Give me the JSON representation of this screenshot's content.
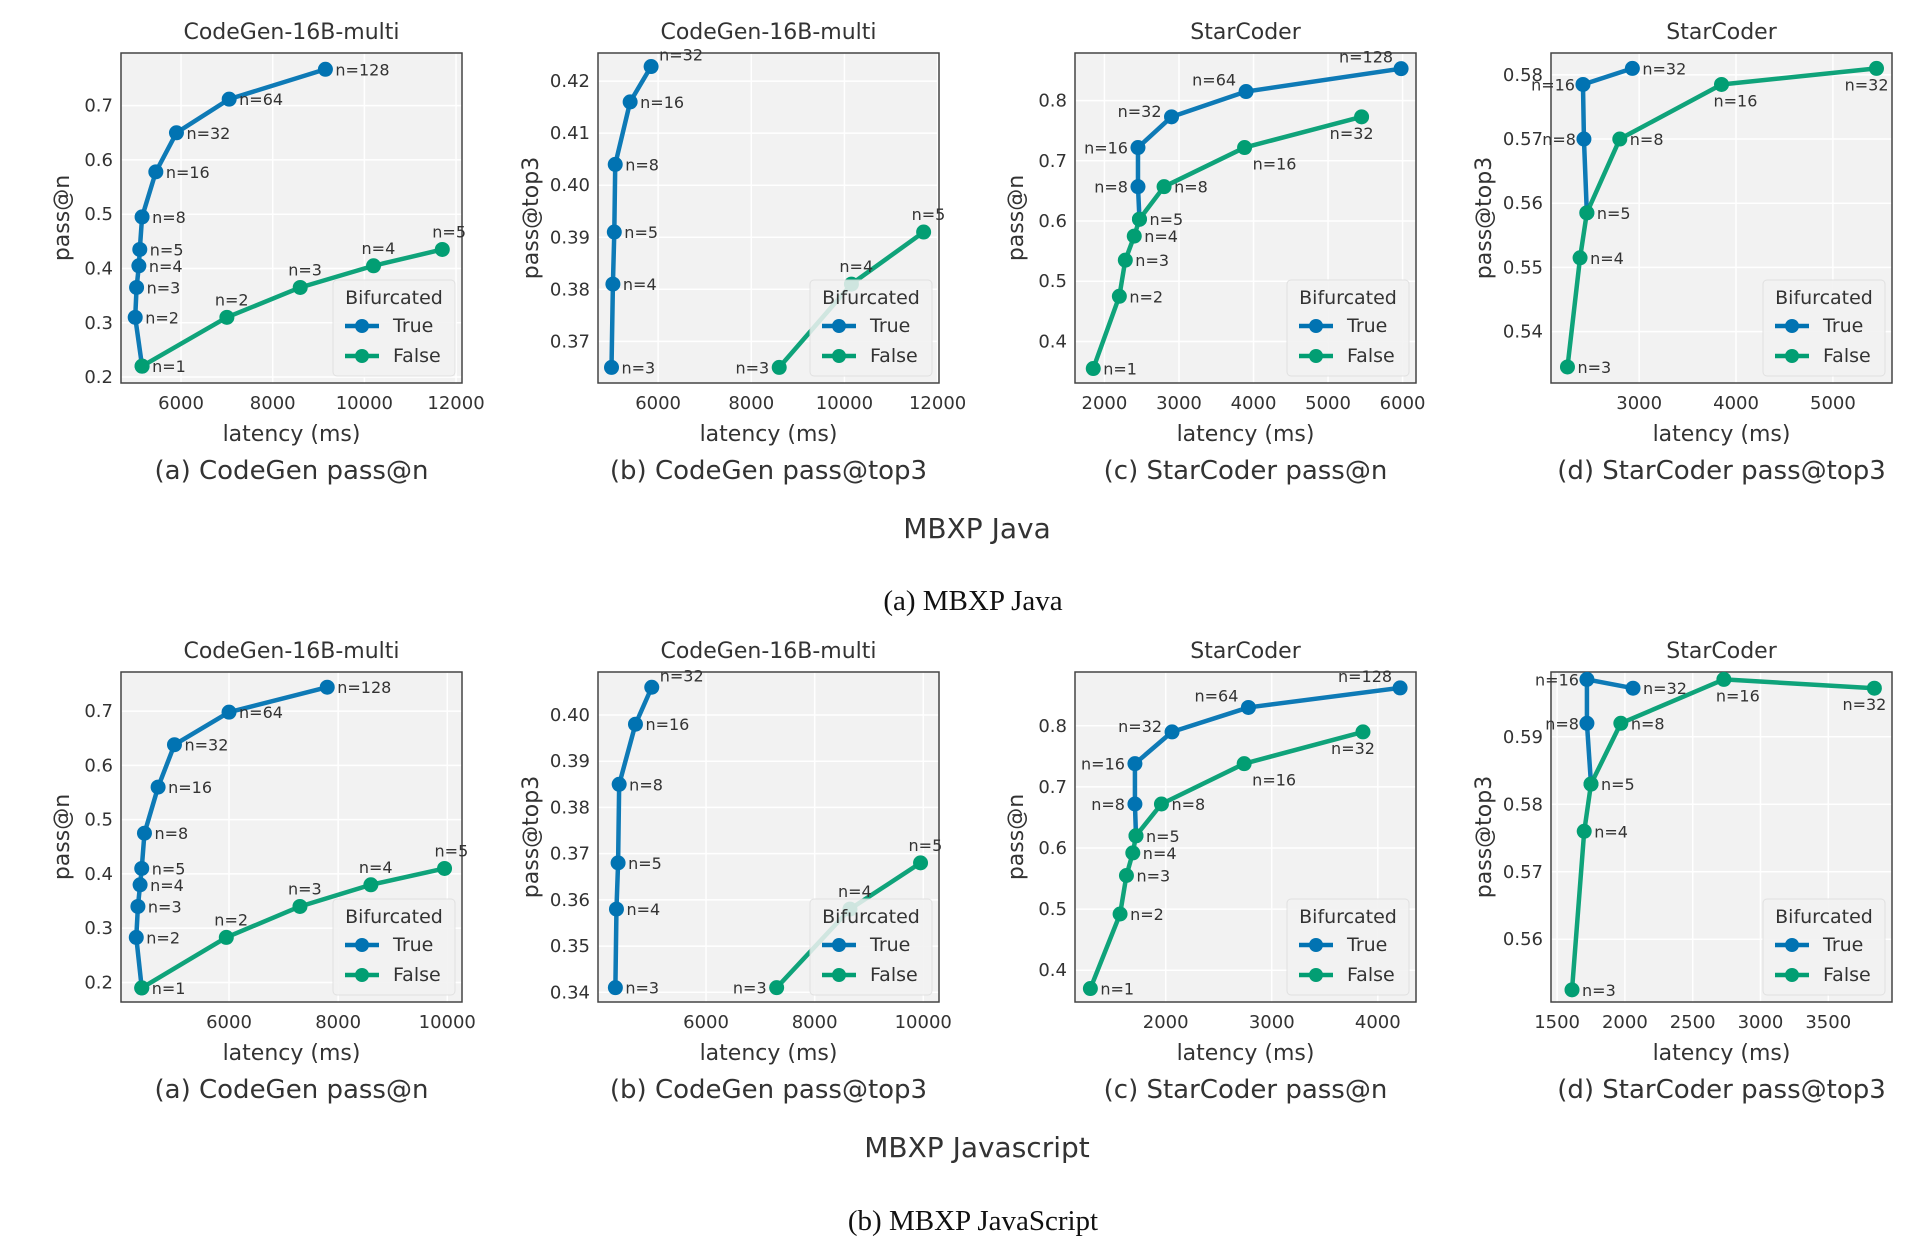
{
  "figure": {
    "rows": [
      {
        "group_label": "MBXP Java",
        "caption": "(a) MBXP Java"
      },
      {
        "group_label": "MBXP Javascript",
        "caption": "(b) MBXP JavaScript"
      }
    ]
  },
  "colors": {
    "True": "#0173b2",
    "False": "#029e73",
    "axes_bg": "#f2f2f2",
    "grid": "#ffffff"
  },
  "legend": {
    "title": "Bifurcated",
    "entries": [
      "True",
      "False"
    ],
    "placement": "lower-right"
  },
  "chart_data": [
    {
      "type": "line",
      "row": 0,
      "title": "CodeGen-16B-multi",
      "subcaption": "(a) CodeGen pass@n",
      "xlabel": "latency (ms)",
      "ylabel": "pass@n",
      "grid": true,
      "xlim": [
        4690,
        12130
      ],
      "ylim": [
        0.189,
        0.797
      ],
      "xticks": [
        6000,
        8000,
        10000,
        12000
      ],
      "yticks": [
        0.2,
        0.3,
        0.4,
        0.5,
        0.6,
        0.7
      ],
      "ytick_labels": [
        "0.2",
        "0.3",
        "0.4",
        "0.5",
        "0.6",
        "0.7"
      ],
      "series": [
        {
          "name": "True",
          "points": [
            {
              "n": "n=1",
              "x": 5150,
              "y": 0.22
            },
            {
              "n": "n=2",
              "x": 5000,
              "y": 0.31
            },
            {
              "n": "n=3",
              "x": 5030,
              "y": 0.365
            },
            {
              "n": "n=4",
              "x": 5080,
              "y": 0.405
            },
            {
              "n": "n=5",
              "x": 5100,
              "y": 0.435
            },
            {
              "n": "n=8",
              "x": 5150,
              "y": 0.495
            },
            {
              "n": "n=16",
              "x": 5450,
              "y": 0.578
            },
            {
              "n": "n=32",
              "x": 5900,
              "y": 0.65
            },
            {
              "n": "n=64",
              "x": 7050,
              "y": 0.712
            },
            {
              "n": "n=128",
              "x": 9150,
              "y": 0.767
            }
          ]
        },
        {
          "name": "False",
          "points": [
            {
              "n": "n=1",
              "x": 5150,
              "y": 0.22
            },
            {
              "n": "n=2",
              "x": 7000,
              "y": 0.31
            },
            {
              "n": "n=3",
              "x": 8600,
              "y": 0.365
            },
            {
              "n": "n=4",
              "x": 10200,
              "y": 0.405
            },
            {
              "n": "n=5",
              "x": 11700,
              "y": 0.435
            }
          ]
        }
      ]
    },
    {
      "type": "line",
      "row": 0,
      "title": "CodeGen-16B-multi",
      "subcaption": "(b) CodeGen pass@top3",
      "xlabel": "latency (ms)",
      "ylabel": "pass@top3",
      "grid": true,
      "xlim": [
        4710,
        12030
      ],
      "ylim": [
        0.362,
        0.4254
      ],
      "xticks": [
        6000,
        8000,
        10000,
        12000
      ],
      "yticks": [
        0.37,
        0.38,
        0.39,
        0.4,
        0.41,
        0.42
      ],
      "ytick_labels": [
        "0.37",
        "0.38",
        "0.39",
        "0.40",
        "0.41",
        "0.42"
      ],
      "series": [
        {
          "name": "True",
          "points": [
            {
              "n": "n=3",
              "x": 5000,
              "y": 0.365
            },
            {
              "n": "n=4",
              "x": 5030,
              "y": 0.381
            },
            {
              "n": "n=5",
              "x": 5060,
              "y": 0.391
            },
            {
              "n": "n=8",
              "x": 5080,
              "y": 0.404
            },
            {
              "n": "n=16",
              "x": 5400,
              "y": 0.416
            },
            {
              "n": "n=32",
              "x": 5850,
              "y": 0.4228
            }
          ]
        },
        {
          "name": "False",
          "points": [
            {
              "n": "n=3",
              "x": 8600,
              "y": 0.365
            },
            {
              "n": "n=4",
              "x": 10150,
              "y": 0.381
            },
            {
              "n": "n=5",
              "x": 11700,
              "y": 0.391
            }
          ]
        }
      ]
    },
    {
      "type": "line",
      "row": 0,
      "title": "StarCoder",
      "subcaption": "(c) StarCoder pass@n",
      "xlabel": "latency (ms)",
      "ylabel": "pass@n",
      "grid": true,
      "xlim": [
        1605,
        6180
      ],
      "ylim": [
        0.331,
        0.879
      ],
      "xticks": [
        2000,
        3000,
        4000,
        5000,
        6000
      ],
      "yticks": [
        0.4,
        0.5,
        0.6,
        0.7,
        0.8
      ],
      "ytick_labels": [
        "0.4",
        "0.5",
        "0.6",
        "0.7",
        "0.8"
      ],
      "series": [
        {
          "name": "True",
          "points": [
            {
              "n": "n=5",
              "x": 2470,
              "y": 0.603
            },
            {
              "n": "n=8",
              "x": 2450,
              "y": 0.657
            },
            {
              "n": "n=16",
              "x": 2450,
              "y": 0.722
            },
            {
              "n": "n=32",
              "x": 2900,
              "y": 0.773
            },
            {
              "n": "n=64",
              "x": 3900,
              "y": 0.815
            },
            {
              "n": "n=128",
              "x": 5980,
              "y": 0.853
            }
          ]
        },
        {
          "name": "False",
          "points": [
            {
              "n": "n=1",
              "x": 1850,
              "y": 0.355
            },
            {
              "n": "n=2",
              "x": 2200,
              "y": 0.475
            },
            {
              "n": "n=3",
              "x": 2280,
              "y": 0.535
            },
            {
              "n": "n=4",
              "x": 2400,
              "y": 0.575
            },
            {
              "n": "n=5",
              "x": 2470,
              "y": 0.603
            },
            {
              "n": "n=8",
              "x": 2800,
              "y": 0.657
            },
            {
              "n": "n=16",
              "x": 3880,
              "y": 0.722
            },
            {
              "n": "n=32",
              "x": 5450,
              "y": 0.773
            }
          ]
        }
      ]
    },
    {
      "type": "line",
      "row": 0,
      "title": "StarCoder",
      "subcaption": "(d) StarCoder pass@top3",
      "xlabel": "latency (ms)",
      "ylabel": "pass@top3",
      "grid": true,
      "xlim": [
        2090,
        5610
      ],
      "ylim": [
        0.532,
        0.5834
      ],
      "xticks": [
        3000,
        4000,
        5000
      ],
      "yticks": [
        0.54,
        0.55,
        0.56,
        0.57,
        0.58
      ],
      "ytick_labels": [
        "0.54",
        "0.55",
        "0.56",
        "0.57",
        "0.58"
      ],
      "series": [
        {
          "name": "True",
          "points": [
            {
              "n": "n=5",
              "x": 2460,
              "y": 0.5585
            },
            {
              "n": "n=8",
              "x": 2430,
              "y": 0.57
            },
            {
              "n": "n=16",
              "x": 2420,
              "y": 0.5785
            },
            {
              "n": "n=32",
              "x": 2930,
              "y": 0.581
            }
          ]
        },
        {
          "name": "False",
          "points": [
            {
              "n": "n=3",
              "x": 2260,
              "y": 0.5345
            },
            {
              "n": "n=4",
              "x": 2390,
              "y": 0.5515
            },
            {
              "n": "n=5",
              "x": 2460,
              "y": 0.5585
            },
            {
              "n": "n=8",
              "x": 2800,
              "y": 0.57
            },
            {
              "n": "n=16",
              "x": 3850,
              "y": 0.5785
            },
            {
              "n": "n=32",
              "x": 5450,
              "y": 0.581
            }
          ]
        }
      ]
    },
    {
      "type": "line",
      "row": 1,
      "title": "CodeGen-16B-multi",
      "subcaption": "(a) CodeGen pass@n",
      "xlabel": "latency (ms)",
      "ylabel": "pass@n",
      "grid": true,
      "xlim": [
        4020,
        10270
      ],
      "ylim": [
        0.164,
        0.772
      ],
      "xticks": [
        6000,
        8000,
        10000
      ],
      "yticks": [
        0.2,
        0.3,
        0.4,
        0.5,
        0.6,
        0.7
      ],
      "ytick_labels": [
        "0.2",
        "0.3",
        "0.4",
        "0.5",
        "0.6",
        "0.7"
      ],
      "series": [
        {
          "name": "True",
          "points": [
            {
              "n": "n=1",
              "x": 4400,
              "y": 0.19
            },
            {
              "n": "n=2",
              "x": 4300,
              "y": 0.283
            },
            {
              "n": "n=3",
              "x": 4330,
              "y": 0.34
            },
            {
              "n": "n=4",
              "x": 4370,
              "y": 0.38
            },
            {
              "n": "n=5",
              "x": 4400,
              "y": 0.41
            },
            {
              "n": "n=8",
              "x": 4450,
              "y": 0.475
            },
            {
              "n": "n=16",
              "x": 4700,
              "y": 0.56
            },
            {
              "n": "n=32",
              "x": 5000,
              "y": 0.638
            },
            {
              "n": "n=64",
              "x": 6000,
              "y": 0.698
            },
            {
              "n": "n=128",
              "x": 7800,
              "y": 0.744
            }
          ]
        },
        {
          "name": "False",
          "points": [
            {
              "n": "n=1",
              "x": 4400,
              "y": 0.19
            },
            {
              "n": "n=2",
              "x": 5950,
              "y": 0.283
            },
            {
              "n": "n=3",
              "x": 7300,
              "y": 0.34
            },
            {
              "n": "n=4",
              "x": 8600,
              "y": 0.38
            },
            {
              "n": "n=5",
              "x": 9950,
              "y": 0.41
            }
          ]
        }
      ]
    },
    {
      "type": "line",
      "row": 1,
      "title": "CodeGen-16B-multi",
      "subcaption": "(b) CodeGen pass@top3",
      "xlabel": "latency (ms)",
      "ylabel": "pass@top3",
      "grid": true,
      "xlim": [
        4010,
        10290
      ],
      "ylim": [
        0.3379,
        0.4093
      ],
      "xticks": [
        6000,
        8000,
        10000
      ],
      "yticks": [
        0.34,
        0.35,
        0.36,
        0.37,
        0.38,
        0.39,
        0.4
      ],
      "ytick_labels": [
        "0.34",
        "0.35",
        "0.36",
        "0.37",
        "0.38",
        "0.39",
        "0.40"
      ],
      "series": [
        {
          "name": "True",
          "points": [
            {
              "n": "n=3",
              "x": 4330,
              "y": 0.341
            },
            {
              "n": "n=4",
              "x": 4350,
              "y": 0.358
            },
            {
              "n": "n=5",
              "x": 4380,
              "y": 0.368
            },
            {
              "n": "n=8",
              "x": 4400,
              "y": 0.385
            },
            {
              "n": "n=16",
              "x": 4700,
              "y": 0.398
            },
            {
              "n": "n=32",
              "x": 5000,
              "y": 0.406
            }
          ]
        },
        {
          "name": "False",
          "points": [
            {
              "n": "n=3",
              "x": 7300,
              "y": 0.341
            },
            {
              "n": "n=4",
              "x": 8650,
              "y": 0.358
            },
            {
              "n": "n=5",
              "x": 9950,
              "y": 0.368
            }
          ]
        }
      ]
    },
    {
      "type": "line",
      "row": 1,
      "title": "StarCoder",
      "subcaption": "(c) StarCoder pass@n",
      "xlabel": "latency (ms)",
      "ylabel": "pass@n",
      "grid": true,
      "xlim": [
        1145,
        4360
      ],
      "ylim": [
        0.348,
        0.888
      ],
      "xticks": [
        2000,
        3000,
        4000
      ],
      "yticks": [
        0.4,
        0.5,
        0.6,
        0.7,
        0.8
      ],
      "ytick_labels": [
        "0.4",
        "0.5",
        "0.6",
        "0.7",
        "0.8"
      ],
      "series": [
        {
          "name": "True",
          "points": [
            {
              "n": "n=5",
              "x": 1720,
              "y": 0.62
            },
            {
              "n": "n=8",
              "x": 1710,
              "y": 0.672
            },
            {
              "n": "n=16",
              "x": 1710,
              "y": 0.738
            },
            {
              "n": "n=32",
              "x": 2060,
              "y": 0.79
            },
            {
              "n": "n=64",
              "x": 2780,
              "y": 0.83
            },
            {
              "n": "n=128",
              "x": 4210,
              "y": 0.862
            }
          ]
        },
        {
          "name": "False",
          "points": [
            {
              "n": "n=1",
              "x": 1290,
              "y": 0.37
            },
            {
              "n": "n=2",
              "x": 1570,
              "y": 0.492
            },
            {
              "n": "n=3",
              "x": 1630,
              "y": 0.555
            },
            {
              "n": "n=4",
              "x": 1690,
              "y": 0.592
            },
            {
              "n": "n=5",
              "x": 1720,
              "y": 0.62
            },
            {
              "n": "n=8",
              "x": 1960,
              "y": 0.672
            },
            {
              "n": "n=16",
              "x": 2740,
              "y": 0.738
            },
            {
              "n": "n=32",
              "x": 3860,
              "y": 0.79
            }
          ]
        }
      ]
    },
    {
      "type": "line",
      "row": 1,
      "title": "StarCoder",
      "subcaption": "(d) StarCoder pass@top3",
      "xlabel": "latency (ms)",
      "ylabel": "pass@top3",
      "grid": true,
      "xlim": [
        1455,
        3970
      ],
      "ylim": [
        0.5507,
        0.5996
      ],
      "xticks": [
        1500,
        2000,
        2500,
        3000,
        3500
      ],
      "yticks": [
        0.56,
        0.57,
        0.58,
        0.59
      ],
      "ytick_labels": [
        "0.56",
        "0.57",
        "0.58",
        "0.59"
      ],
      "series": [
        {
          "name": "True",
          "points": [
            {
              "n": "n=5",
              "x": 1750,
              "y": 0.583
            },
            {
              "n": "n=8",
              "x": 1720,
              "y": 0.592
            },
            {
              "n": "n=16",
              "x": 1720,
              "y": 0.5985
            },
            {
              "n": "n=32",
              "x": 2060,
              "y": 0.5972
            }
          ]
        },
        {
          "name": "False",
          "points": [
            {
              "n": "n=3",
              "x": 1610,
              "y": 0.5525
            },
            {
              "n": "n=4",
              "x": 1700,
              "y": 0.576
            },
            {
              "n": "n=5",
              "x": 1750,
              "y": 0.583
            },
            {
              "n": "n=8",
              "x": 1970,
              "y": 0.592
            },
            {
              "n": "n=16",
              "x": 2730,
              "y": 0.5985
            },
            {
              "n": "n=32",
              "x": 3840,
              "y": 0.5972
            }
          ]
        }
      ]
    }
  ]
}
